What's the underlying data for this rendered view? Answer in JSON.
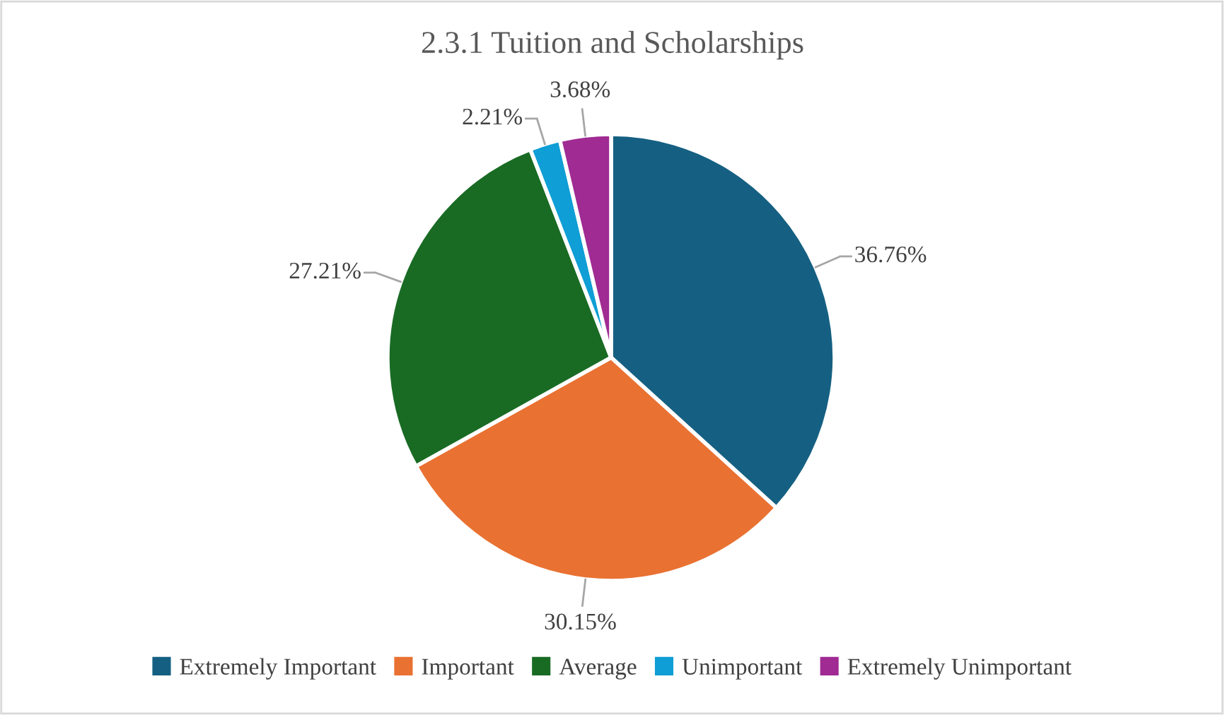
{
  "chart_data": {
    "type": "pie",
    "title": "2.3.1 Tuition and Scholarships",
    "categories": [
      "Extremely Important",
      "Important",
      "Average",
      "Unimportant",
      "Extremely Unimportant"
    ],
    "values": [
      36.76,
      30.15,
      27.21,
      2.21,
      3.68
    ],
    "value_labels": [
      "36.76%",
      "30.15%",
      "27.21%",
      "2.21%",
      "3.68%"
    ],
    "colors": [
      "#156082",
      "#e97132",
      "#196b24",
      "#0f9ed5",
      "#a02b93"
    ],
    "legend": "bottom"
  }
}
